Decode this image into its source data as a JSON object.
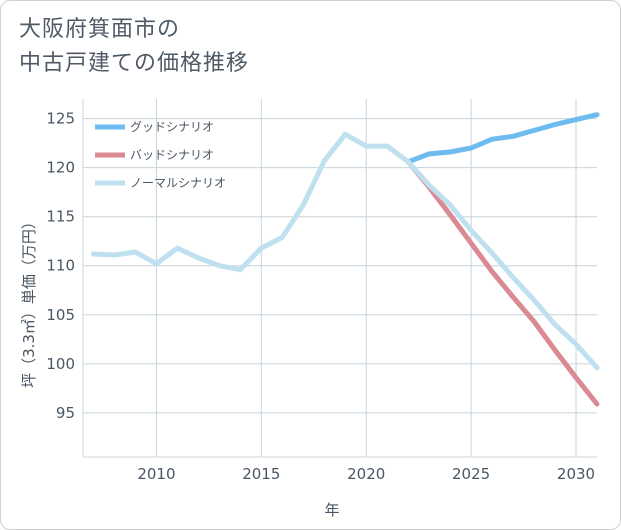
{
  "title": {
    "line1": "大阪府箕面市の",
    "line2": "中古戸建ての価格推移"
  },
  "colors": {
    "good": "#6ebbf0",
    "bad": "#d98a92",
    "normal": "#bfe0ee",
    "grid": "#c8d4dc",
    "text": "#4a5663"
  },
  "chart_data": {
    "type": "line",
    "title": "大阪府箕面市の中古戸建ての価格推移",
    "xlabel": "年",
    "ylabel": "坪（3.3㎡）単価（万円）",
    "xlim": [
      2006.5,
      2031
    ],
    "ylim": [
      90.5,
      127
    ],
    "xticks": [
      2010,
      2015,
      2020,
      2025,
      2030
    ],
    "yticks": [
      95,
      100,
      105,
      110,
      115,
      120,
      125
    ],
    "grid": true,
    "legend_position": "top-left",
    "series": [
      {
        "name": "グッドシナリオ",
        "key": "good",
        "x": [
          2022,
          2023,
          2024,
          2025,
          2026,
          2027,
          2028,
          2029,
          2030,
          2031
        ],
        "values": [
          120.6,
          121.4,
          121.6,
          122.0,
          122.9,
          123.2,
          123.8,
          124.4,
          124.9,
          125.4
        ]
      },
      {
        "name": "バッドシナリオ",
        "key": "bad",
        "x": [
          2022,
          2023,
          2024,
          2025,
          2026,
          2027,
          2028,
          2029,
          2030,
          2031
        ],
        "values": [
          120.6,
          118.0,
          115.2,
          112.3,
          109.4,
          106.8,
          104.3,
          101.4,
          98.6,
          95.9
        ]
      },
      {
        "name": "ノーマルシナリオ",
        "key": "normal",
        "x": [
          2007,
          2008,
          2009,
          2010,
          2011,
          2012,
          2013,
          2014,
          2015,
          2016,
          2017,
          2018,
          2019,
          2020,
          2021,
          2022,
          2023,
          2024,
          2025,
          2026,
          2027,
          2028,
          2029,
          2030,
          2031
        ],
        "values": [
          111.2,
          111.1,
          111.4,
          110.2,
          111.8,
          110.8,
          110.0,
          109.6,
          111.8,
          112.9,
          116.2,
          120.7,
          123.4,
          122.2,
          122.2,
          120.6,
          118.2,
          116.2,
          113.6,
          111.3,
          108.8,
          106.5,
          104.0,
          102.0,
          99.6
        ]
      }
    ]
  }
}
